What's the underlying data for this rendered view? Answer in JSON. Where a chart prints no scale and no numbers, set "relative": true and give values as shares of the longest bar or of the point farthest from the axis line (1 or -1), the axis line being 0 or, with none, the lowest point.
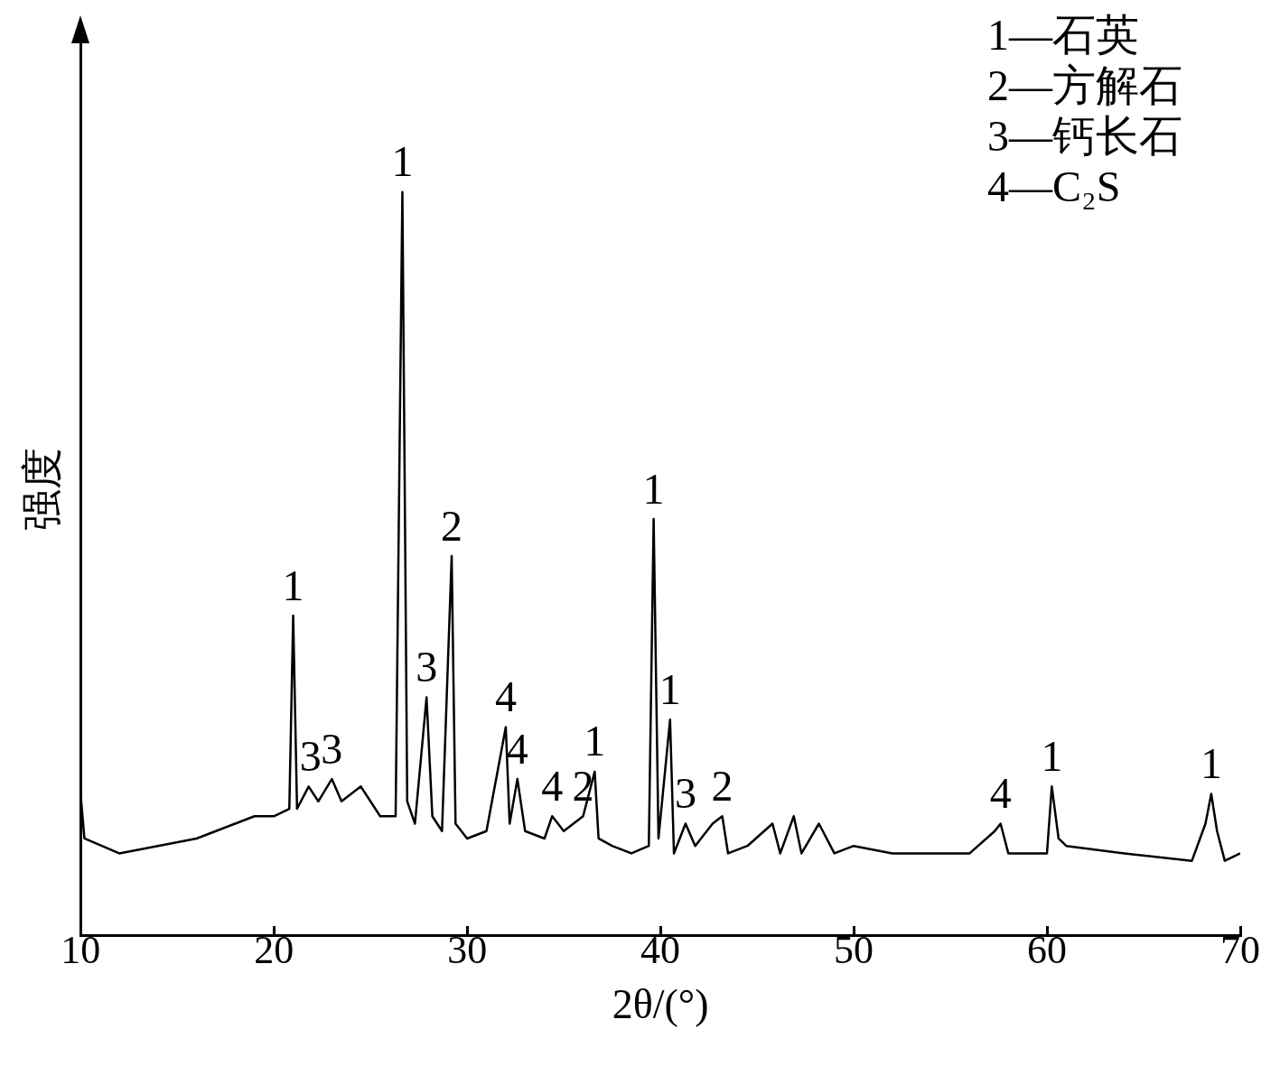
{
  "chart_data": {
    "type": "line",
    "relative": true,
    "xlabel": "2θ/(°)",
    "ylabel": "强度",
    "x": [
      10.0,
      10.2,
      12,
      14,
      16,
      17,
      18,
      19,
      20,
      20.8,
      21.0,
      21.2,
      21.8,
      22.3,
      23.0,
      23.5,
      24.5,
      25.5,
      26.3,
      26.65,
      26.9,
      27.3,
      27.9,
      28.2,
      28.7,
      29.2,
      29.4,
      30,
      31,
      32.0,
      32.2,
      32.6,
      33.0,
      34.0,
      34.4,
      35,
      36,
      36.6,
      36.8,
      37.5,
      38.5,
      39.4,
      39.65,
      39.9,
      40.5,
      40.7,
      41.3,
      41.8,
      42.7,
      43.2,
      43.5,
      44.5,
      45.8,
      46.2,
      46.9,
      47.3,
      48.2,
      49,
      50,
      52,
      54,
      56,
      57.3,
      57.6,
      58,
      60.0,
      60.25,
      60.6,
      61,
      64,
      67.5,
      68.2,
      68.5,
      68.8,
      69.2,
      70
    ],
    "series": [
      {
        "color": "#000000",
        "values": [
          0.19,
          0.13,
          0.11,
          0.12,
          0.13,
          0.14,
          0.15,
          0.16,
          0.16,
          0.17,
          0.43,
          0.17,
          0.2,
          0.18,
          0.21,
          0.18,
          0.2,
          0.16,
          0.16,
          1,
          0.18,
          0.15,
          0.32,
          0.16,
          0.14,
          0.51,
          0.15,
          0.13,
          0.14,
          0.28,
          0.15,
          0.21,
          0.14,
          0.13,
          0.16,
          0.14,
          0.16,
          0.22,
          0.13,
          0.12,
          0.11,
          0.12,
          0.56,
          0.13,
          0.29,
          0.11,
          0.15,
          0.12,
          0.15,
          0.16,
          0.11,
          0.12,
          0.15,
          0.11,
          0.16,
          0.11,
          0.15,
          0.11,
          0.12,
          0.11,
          0.11,
          0.11,
          0.14,
          0.15,
          0.11,
          0.11,
          0.2,
          0.13,
          0.12,
          0.11,
          0.1,
          0.15,
          0.19,
          0.14,
          0.1,
          0.11
        ]
      }
    ],
    "xlim": [
      10,
      70
    ],
    "xticks": [
      10,
      20,
      30,
      40,
      50,
      60,
      70
    ],
    "grid": false,
    "legend": false,
    "marker": "none",
    "line_style": "solid",
    "annotations": [
      {
        "text": "1",
        "x": 21.0,
        "y": 0.43
      },
      {
        "text": "3",
        "x": 21.9,
        "y": 0.2
      },
      {
        "text": "3",
        "x": 23.0,
        "y": 0.21
      },
      {
        "text": "1",
        "x": 26.65,
        "y": 1
      },
      {
        "text": "3",
        "x": 27.9,
        "y": 0.32
      },
      {
        "text": "2",
        "x": 29.2,
        "y": 0.51
      },
      {
        "text": "4",
        "x": 32.0,
        "y": 0.28
      },
      {
        "text": "4",
        "x": 32.6,
        "y": 0.21
      },
      {
        "text": "4",
        "x": 34.4,
        "y": 0.16
      },
      {
        "text": "2",
        "x": 36.0,
        "y": 0.16
      },
      {
        "text": "1",
        "x": 36.6,
        "y": 0.22
      },
      {
        "text": "1",
        "x": 39.65,
        "y": 0.56
      },
      {
        "text": "1",
        "x": 40.5,
        "y": 0.29
      },
      {
        "text": "3",
        "x": 41.3,
        "y": 0.15
      },
      {
        "text": "2",
        "x": 43.2,
        "y": 0.16
      },
      {
        "text": "4",
        "x": 57.6,
        "y": 0.15
      },
      {
        "text": "1",
        "x": 60.25,
        "y": 0.2
      },
      {
        "text": "1",
        "x": 68.5,
        "y": 0.19
      },
      "1—石英",
      "2—方解石",
      "3—钙长石",
      "4—C₂S"
    ]
  }
}
